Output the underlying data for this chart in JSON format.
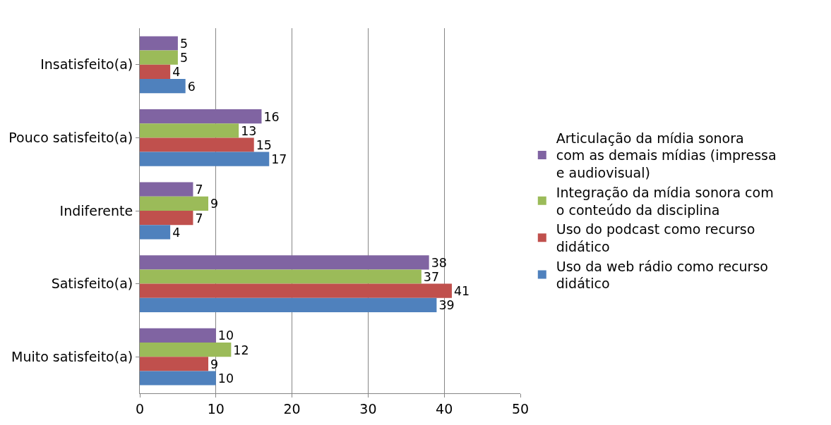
{
  "chart_data": {
    "type": "bar",
    "orientation": "horizontal",
    "categories": [
      "Insatisfeito(a)",
      "Pouco satisfeito(a)",
      "Indiferente",
      "Satisfeito(a)",
      "Muito satisfeito(a)"
    ],
    "series": [
      {
        "name": "Articulação da mídia sonora com as demais mídias (impressa e audiovisual)",
        "color": "#8064a2",
        "values": [
          5,
          16,
          7,
          38,
          10
        ]
      },
      {
        "name": "Integração da mídia sonora com o conteúdo da disciplina",
        "color": "#9bbb59",
        "values": [
          5,
          13,
          9,
          37,
          12
        ]
      },
      {
        "name": "Uso do podcast como recurso didático",
        "color": "#c0504d",
        "values": [
          4,
          15,
          7,
          41,
          9
        ]
      },
      {
        "name": "Uso da web rádio como recurso didático",
        "color": "#4f81bd",
        "values": [
          6,
          17,
          4,
          39,
          10
        ]
      }
    ],
    "xlim": [
      0,
      50
    ],
    "xticks": [
      0,
      10,
      20,
      30,
      40,
      50
    ],
    "grid": "x",
    "legend": "right",
    "data_labels": true
  }
}
